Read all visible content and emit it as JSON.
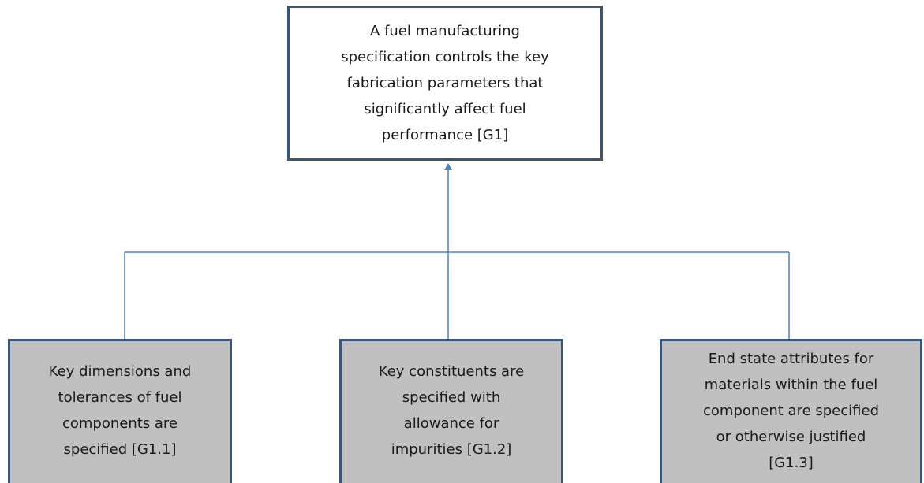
{
  "nodes": [
    {
      "lines": [
        "A fuel manufacturing",
        "specification controls the key",
        "fabrication parameters that",
        "significantly affect fuel",
        "performance  [G1]"
      ]
    },
    {
      "lines": [
        "Key dimensions and",
        "tolerances of fuel",
        "components  are",
        "specified [G1.1]"
      ]
    },
    {
      "lines": [
        "Key constituents are",
        "specified with",
        "allowance for",
        "impurities [G1.2]"
      ]
    },
    {
      "lines": [
        "End state attributes for",
        "materials within the fuel",
        "component are specified",
        "or otherwise justified",
        "[G1.3]"
      ]
    }
  ]
}
